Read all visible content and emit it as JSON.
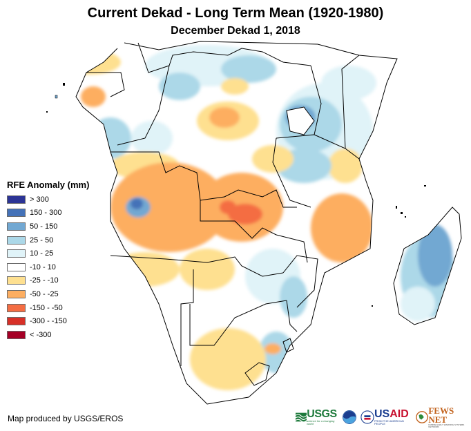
{
  "header": {
    "title": "Current Dekad - Long Term Mean (1920-1980)",
    "subtitle": "December Dekad 1, 2018"
  },
  "legend": {
    "title": "RFE Anomaly (mm)",
    "items": [
      {
        "label": "> 300",
        "color": "#2c3495"
      },
      {
        "label": "150 - 300",
        "color": "#4472b8"
      },
      {
        "label": "50 - 150",
        "color": "#72a8d2"
      },
      {
        "label": "25 - 50",
        "color": "#acd8e8"
      },
      {
        "label": "10 - 25",
        "color": "#e0f3f8"
      },
      {
        "label": "-10 - 10",
        "color": "#ffffff"
      },
      {
        "label": "-25 - -10",
        "color": "#fee090"
      },
      {
        "label": "-50 - -25",
        "color": "#fdae61"
      },
      {
        "label": "-150 - -50",
        "color": "#f46d43"
      },
      {
        "label": "-300 - -150",
        "color": "#d73027"
      },
      {
        "label": "< -300",
        "color": "#a50026"
      }
    ]
  },
  "footer": {
    "credit": "Map produced by USGS/EROS",
    "logos": {
      "usgs": "USGS",
      "usgs_tagline": "science for a changing world",
      "noaa": "NOAA",
      "usaid_prefix": "US",
      "usaid_suffix": "AID",
      "usaid_tagline": "FROM THE AMERICAN PEOPLE",
      "fews": "FEWS NET",
      "fews_tagline": "FAMINE EARLY WARNING SYSTEMS NETWORK"
    }
  }
}
